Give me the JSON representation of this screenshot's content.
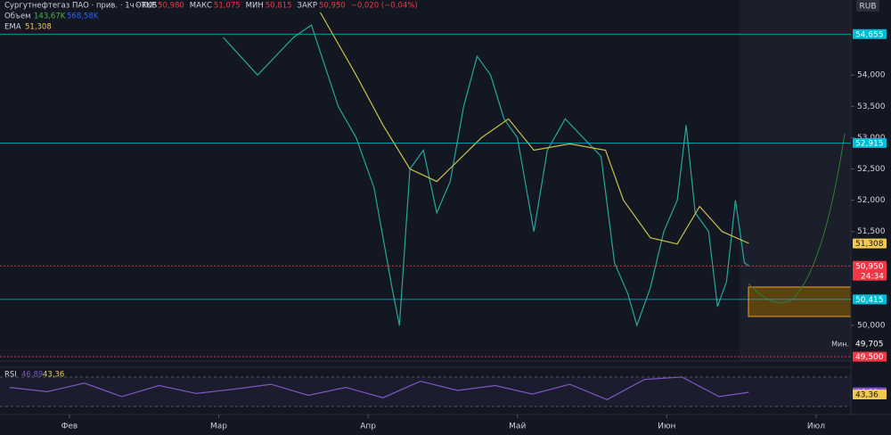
{
  "header": {
    "title": "Сургутнефтегаз ПАО · прив. · 1ч · RUS",
    "ohlc": [
      {
        "label": "ОТКР",
        "value": "50,980"
      },
      {
        "label": "МАКС",
        "value": "51,075"
      },
      {
        "label": "МИН",
        "value": "50,815"
      },
      {
        "label": "ЗАКР",
        "value": "50,950"
      }
    ],
    "change": "−0,020 (−0,04%)",
    "volume_label": "Объем",
    "volume_values": [
      "143,67K",
      "568,58K"
    ],
    "ema_value": "51,308",
    "currency": "RUB"
  },
  "chart_data": [
    {
      "type": "line",
      "xlim": [
        -0.465,
        5.233
      ],
      "ylim": [
        49.43,
        55.2
      ],
      "xticks": [
        {
          "value": 0,
          "label": "Фев"
        },
        {
          "value": 1,
          "label": "Мар"
        },
        {
          "value": 2,
          "label": "Апр"
        },
        {
          "value": 3,
          "label": "Май"
        },
        {
          "value": 4,
          "label": "Июн"
        },
        {
          "value": 5,
          "label": "Июл"
        }
      ],
      "yticks": [
        {
          "value": 54,
          "label": "54,000"
        },
        {
          "value": 53.5,
          "label": "53,500"
        },
        {
          "value": 53,
          "label": "53,000"
        },
        {
          "value": 52.5,
          "label": "52,500"
        },
        {
          "value": 52,
          "label": "52,000"
        },
        {
          "value": 51.5,
          "label": "51,500"
        },
        {
          "value": 50,
          "label": "50,000"
        }
      ],
      "grid": false,
      "series": [
        {
          "color": "#26a69a",
          "x": [
            1.03,
            1.26,
            1.5,
            1.62,
            1.8,
            1.92,
            2.04,
            2.16,
            2.21,
            2.28,
            2.37,
            2.46,
            2.55,
            2.64,
            2.73,
            2.82,
            2.91,
            3.0,
            3.11,
            3.2,
            3.32,
            3.44,
            3.56,
            3.65,
            3.74,
            3.8,
            3.89,
            3.98,
            4.07,
            4.13,
            4.19,
            4.28,
            4.34,
            4.4,
            4.46,
            4.52,
            4.55
          ],
          "values": [
            54.6,
            54.0,
            54.6,
            54.8,
            53.5,
            53.0,
            52.2,
            50.6,
            50.0,
            52.5,
            52.8,
            51.8,
            52.3,
            53.5,
            54.3,
            54.0,
            53.3,
            53.0,
            51.5,
            52.8,
            53.3,
            53.0,
            52.7,
            51.0,
            50.5,
            50.0,
            50.6,
            51.5,
            52.0,
            53.2,
            51.8,
            51.5,
            50.3,
            50.7,
            52.0,
            51.0,
            50.95
          ]
        },
        {
          "name": "EMA",
          "color": "#c9c04a",
          "x": [
            1.68,
            1.92,
            2.1,
            2.28,
            2.46,
            2.76,
            2.94,
            3.11,
            3.35,
            3.59,
            3.71,
            3.89,
            4.07,
            4.22,
            4.37,
            4.55
          ],
          "values": [
            55.0,
            54.0,
            53.2,
            52.5,
            52.3,
            53.0,
            53.3,
            52.8,
            52.9,
            52.8,
            52.0,
            51.4,
            51.3,
            51.9,
            51.5,
            51.31
          ]
        }
      ],
      "levels": [
        {
          "value": 54.655,
          "label": "54,655",
          "color": "#00bcd4",
          "line": true
        },
        {
          "value": 52.915,
          "label": "52,915",
          "color": "#00bcd4",
          "line": true
        },
        {
          "value": 51.308,
          "label": "51,308",
          "color": "#f2c94c"
        },
        {
          "value": 50.95,
          "label": "50,950",
          "color": "#f23645",
          "countdown": "24:34",
          "line": true
        },
        {
          "value": 50.415,
          "label": "50,415",
          "color": "#00bcd4",
          "line": true
        },
        {
          "value": 49.705,
          "label": "49,705",
          "color": "#131722",
          "tag": "Мин."
        },
        {
          "value": 49.5,
          "label": "49,500",
          "color": "#f23645",
          "line": true
        }
      ]
    },
    {
      "type": "line",
      "title": "RSI",
      "xlim": [
        -0.465,
        5.233
      ],
      "ylim": [
        15,
        85
      ],
      "series": [
        {
          "color": "#7e57c2",
          "x": [
            -0.4,
            -0.15,
            0.1,
            0.35,
            0.6,
            0.85,
            1.1,
            1.35,
            1.6,
            1.85,
            2.1,
            2.35,
            2.6,
            2.85,
            3.1,
            3.35,
            3.6,
            3.85,
            4.1,
            4.35,
            4.55
          ],
          "values": [
            55,
            48,
            62,
            40,
            58,
            45,
            52,
            60,
            42,
            55,
            38,
            65,
            50,
            58,
            44,
            60,
            35,
            68,
            72,
            40,
            46.89
          ]
        }
      ],
      "levels": [
        {
          "value": 46.89,
          "label": "46,89",
          "color": "#7e57c2"
        },
        {
          "value": 43.36,
          "label": "43,36",
          "color": "#f2c94c"
        }
      ]
    }
  ]
}
